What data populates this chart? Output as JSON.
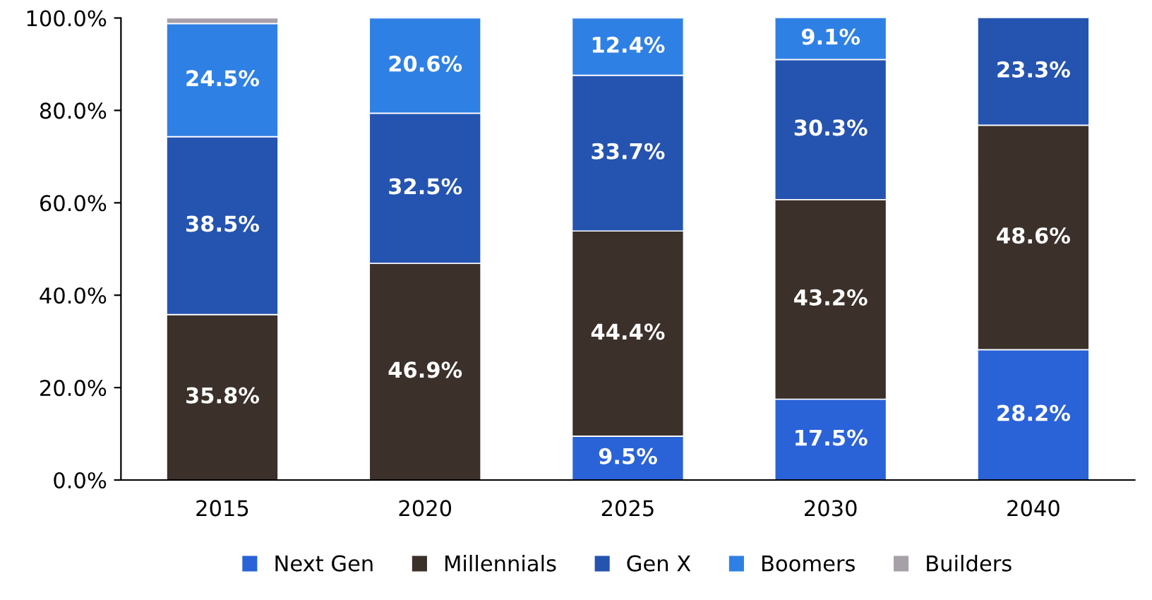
{
  "chart_data": {
    "type": "bar",
    "stacked": true,
    "categories": [
      "2015",
      "2020",
      "2025",
      "2030",
      "2040"
    ],
    "series": [
      {
        "name": "Next Gen",
        "color": "#2a62d8",
        "values": [
          null,
          null,
          9.5,
          17.5,
          28.2
        ],
        "value_labels": [
          null,
          null,
          "9.5%",
          "17.5%",
          "28.2%"
        ]
      },
      {
        "name": "Millennials",
        "color": "#3b302a",
        "values": [
          35.8,
          46.9,
          44.4,
          43.2,
          48.6
        ],
        "value_labels": [
          "35.8%",
          "46.9%",
          "44.4%",
          "43.2%",
          "48.6%"
        ]
      },
      {
        "name": "Gen X",
        "color": "#2553b0",
        "values": [
          38.5,
          32.5,
          33.7,
          30.3,
          23.3
        ],
        "value_labels": [
          "38.5%",
          "32.5%",
          "33.7%",
          "30.3%",
          "23.3%"
        ]
      },
      {
        "name": "Boomers",
        "color": "#2f80e4",
        "values": [
          24.5,
          20.6,
          12.4,
          9.1,
          null
        ],
        "value_labels": [
          "24.5%",
          "20.6%",
          "12.4%",
          "9.1%",
          null
        ]
      },
      {
        "name": "Builders",
        "color": "#a8a0a8",
        "values": [
          1.2,
          null,
          null,
          null,
          null
        ],
        "value_labels": [
          null,
          null,
          null,
          null,
          null
        ]
      }
    ],
    "ylim": [
      0,
      100
    ],
    "yticks": [
      {
        "value": 0,
        "label": "0.0%"
      },
      {
        "value": 20,
        "label": "20.0%"
      },
      {
        "value": 40,
        "label": "40.0%"
      },
      {
        "value": 60,
        "label": "60.0%"
      },
      {
        "value": 80,
        "label": "80.0%"
      },
      {
        "value": 100,
        "label": "100.0%"
      }
    ],
    "legend": "bottom"
  }
}
